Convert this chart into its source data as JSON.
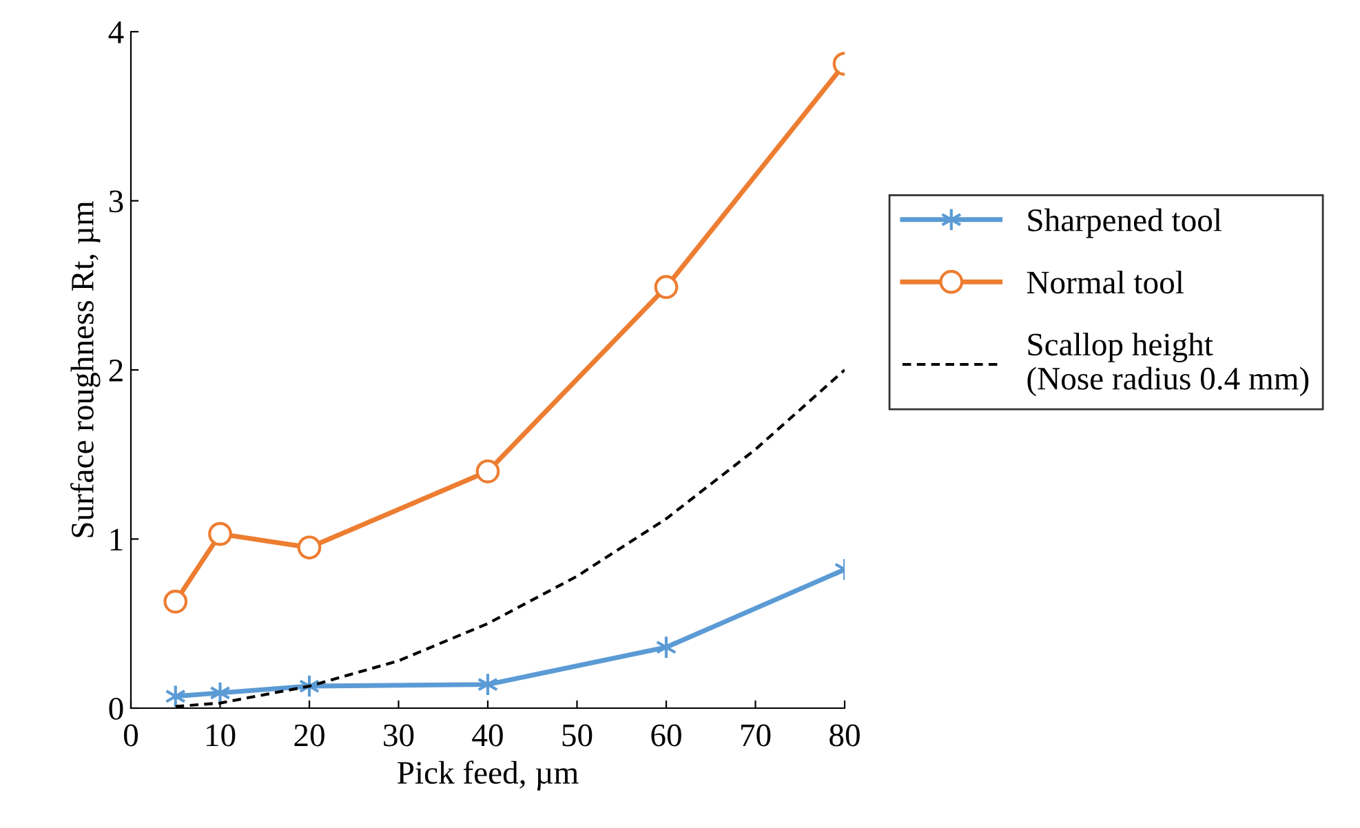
{
  "chart_data": {
    "type": "line",
    "xlabel": "Pick feed, µm",
    "ylabel": "Surface roughness Rt, µm",
    "xlim": [
      0,
      80
    ],
    "xticks": [
      0,
      10,
      20,
      30,
      40,
      50,
      60,
      70,
      80
    ],
    "ylim": [
      0,
      4
    ],
    "yticks": [
      0,
      1,
      2,
      3,
      4
    ],
    "grid": false,
    "legend": "right",
    "series": [
      {
        "name": "Sharpened tool",
        "color": "#5b9bd5",
        "marker": "cross",
        "line_style": "solid",
        "x": [
          5,
          10,
          20,
          40,
          60,
          80
        ],
        "values": [
          0.07,
          0.09,
          0.13,
          0.14,
          0.36,
          0.82
        ]
      },
      {
        "name": "Normal tool",
        "color": "#ed7d31",
        "marker": "circle",
        "line_style": "solid",
        "x": [
          5,
          10,
          20,
          40,
          60,
          80
        ],
        "values": [
          0.63,
          1.03,
          0.95,
          1.4,
          2.49,
          3.81
        ]
      },
      {
        "name": "Scallop height\n(Nose radius 0.4 mm)",
        "color": "#000000",
        "marker": "none",
        "line_style": "dashed",
        "x": [
          5,
          10,
          20,
          30,
          40,
          50,
          60,
          70,
          80
        ],
        "values": [
          0.01,
          0.03,
          0.13,
          0.28,
          0.5,
          0.78,
          1.12,
          1.53,
          2.0
        ]
      }
    ]
  }
}
